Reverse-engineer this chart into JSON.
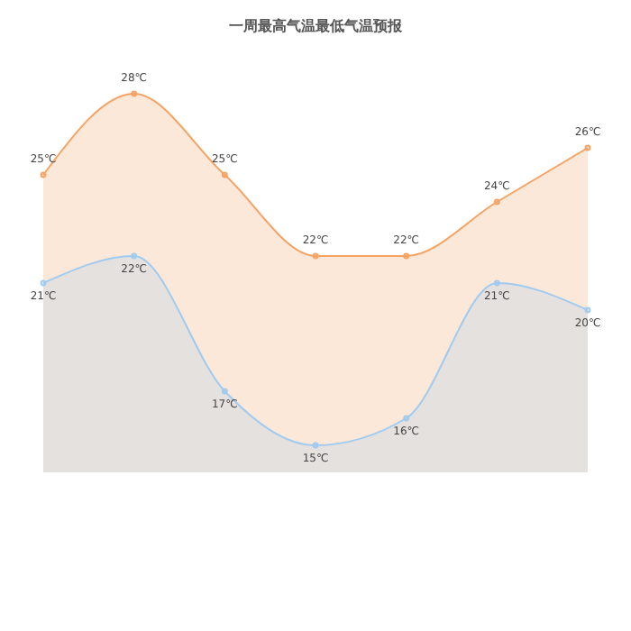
{
  "chart_data": {
    "type": "area",
    "title": "一周最高气温最低气温预报",
    "categories": [
      null,
      null,
      null,
      null,
      null,
      null,
      null
    ],
    "series": [
      {
        "color": "#f5a263",
        "values": [
          25,
          28,
          25,
          22,
          22,
          24,
          26
        ],
        "value_labels": [
          "25℃",
          "28℃",
          "25℃",
          "22℃",
          "22℃",
          "24℃",
          "26℃"
        ]
      },
      {
        "color": "#9fcbf0",
        "values": [
          21,
          22,
          17,
          15,
          16,
          21,
          20
        ],
        "value_labels": [
          "21℃",
          "22℃",
          "17℃",
          "15℃",
          "16℃",
          "21℃",
          "20℃"
        ]
      }
    ],
    "tick_labels": false
  }
}
